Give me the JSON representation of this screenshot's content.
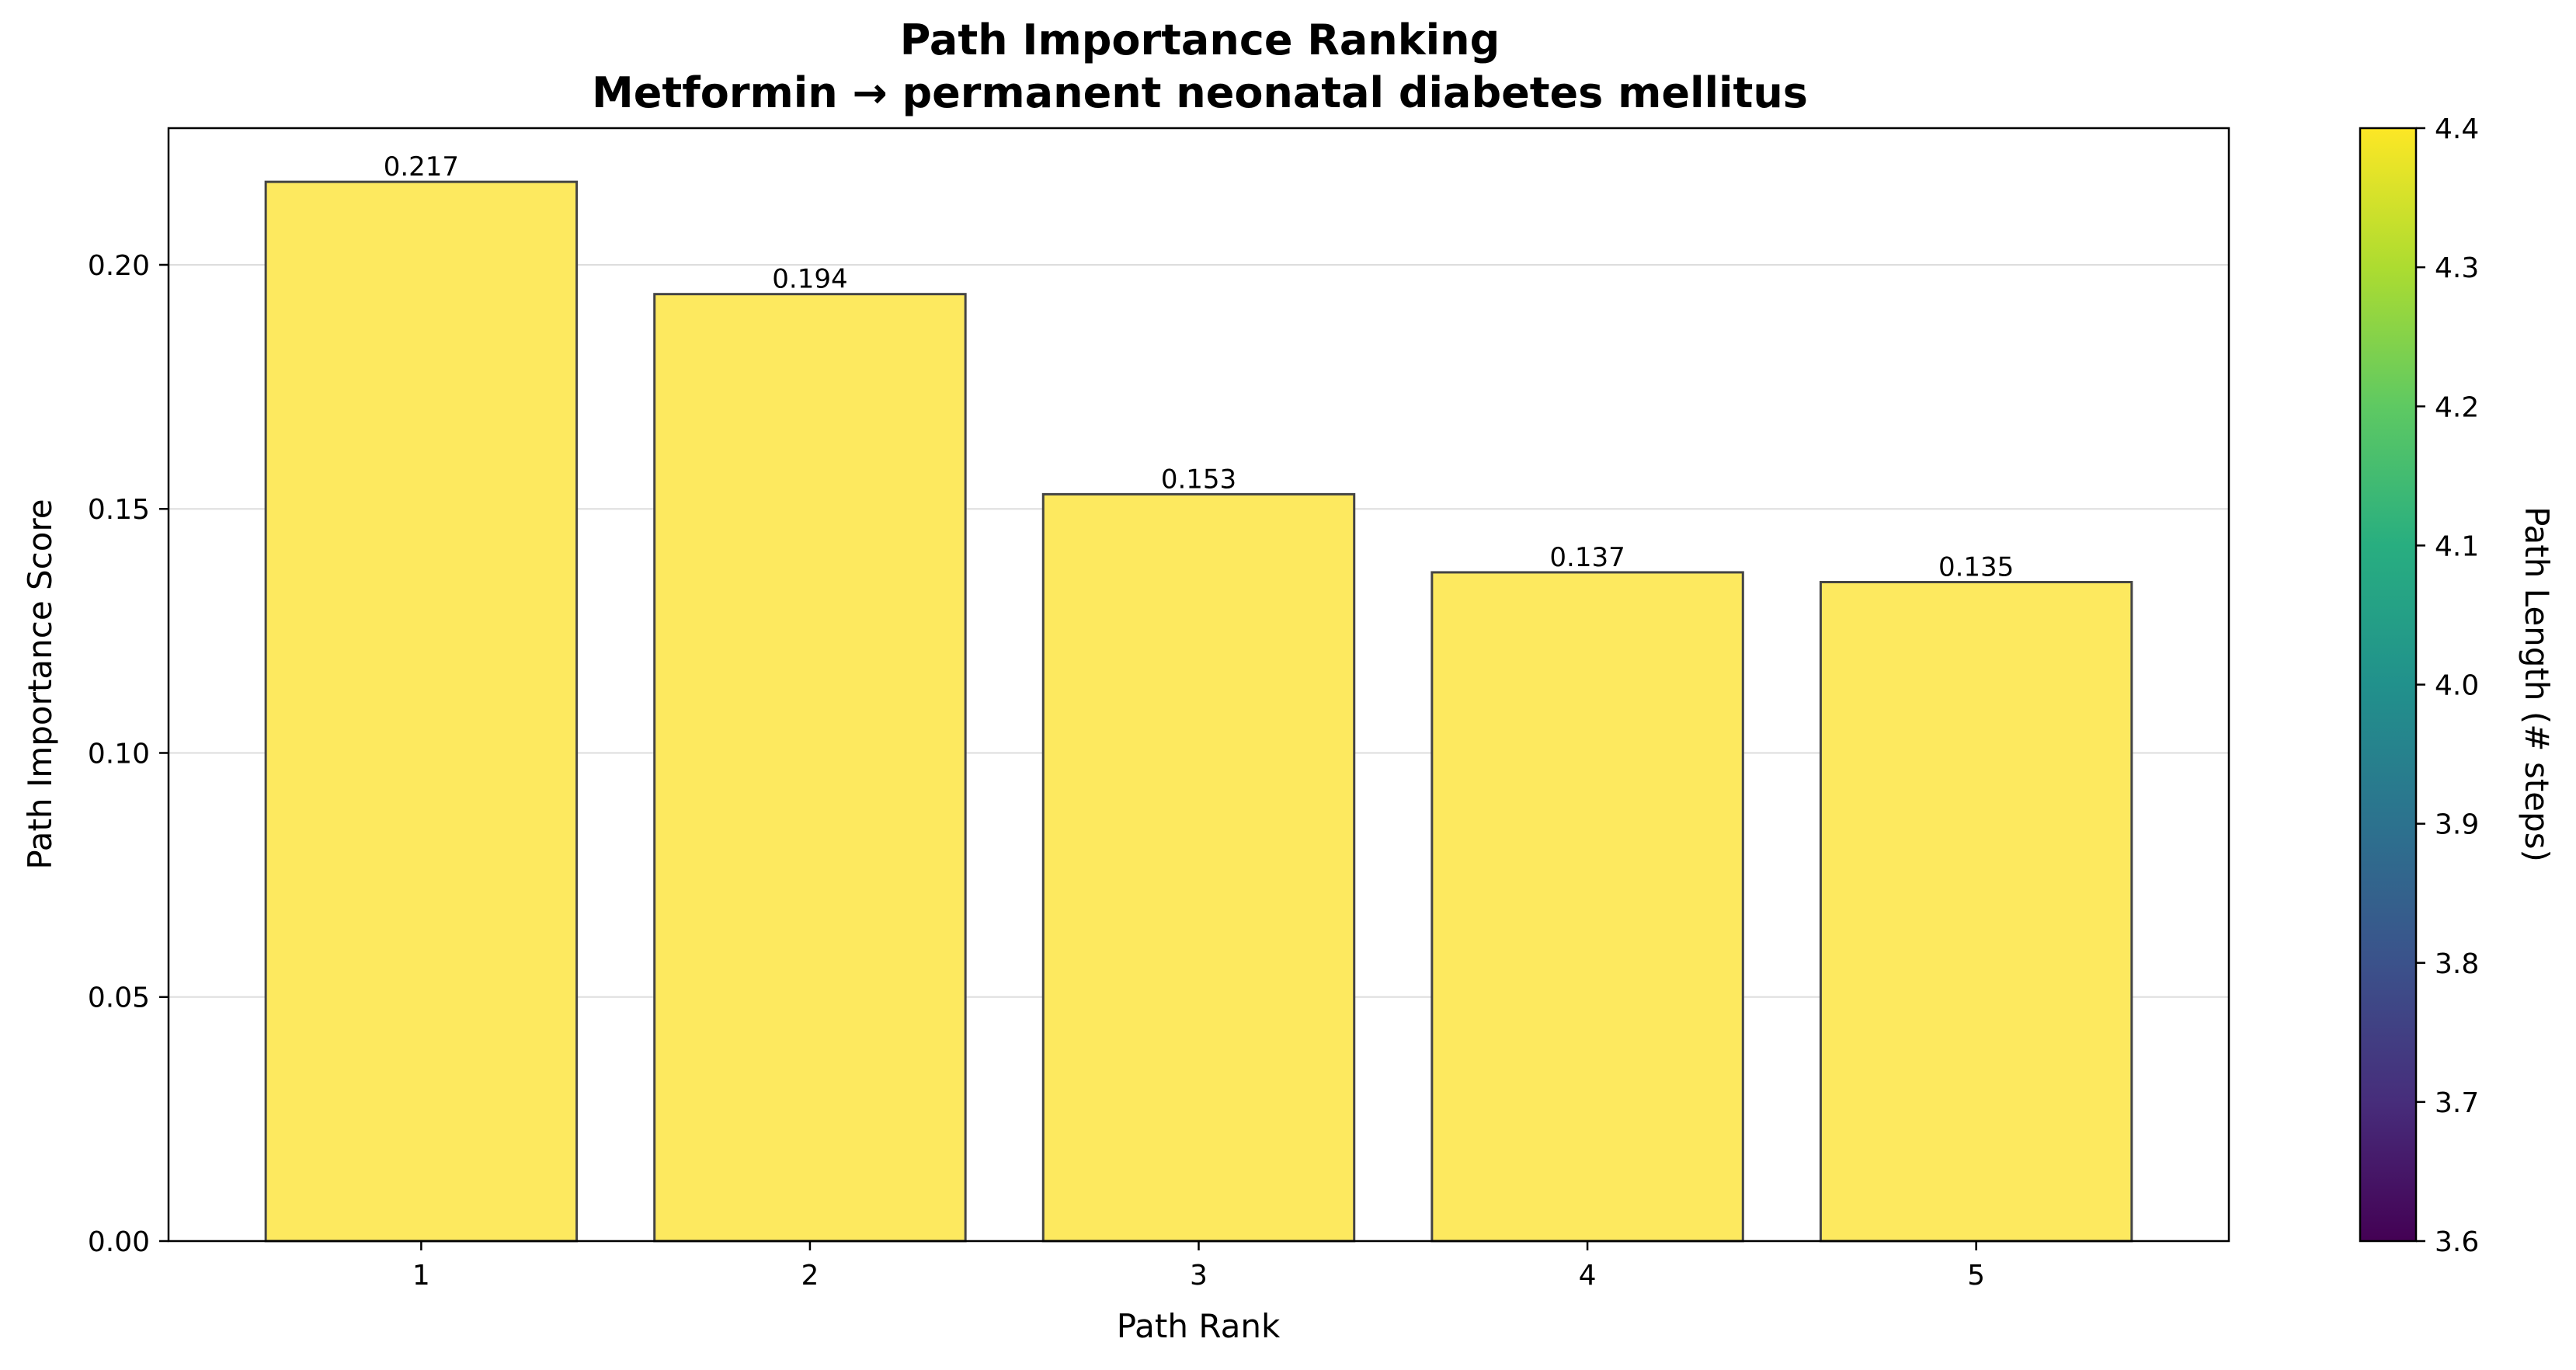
{
  "chart_data": {
    "type": "bar",
    "title": "Path Importance Ranking",
    "subtitle": "Metformin → permanent neonatal diabetes mellitus",
    "xlabel": "Path Rank",
    "ylabel": "Path Importance Score",
    "categories": [
      "1",
      "2",
      "3",
      "4",
      "5"
    ],
    "values": [
      0.217,
      0.194,
      0.153,
      0.137,
      0.135
    ],
    "data_labels": [
      "0.217",
      "0.194",
      "0.153",
      "0.137",
      "0.135"
    ],
    "ylim": [
      0,
      0.228
    ],
    "yticks": [
      0.0,
      0.05,
      0.1,
      0.15,
      0.2
    ],
    "ytick_labels": [
      "0.00",
      "0.05",
      "0.10",
      "0.15",
      "0.20"
    ],
    "grid": "horizontal",
    "bar_color": "#fde95f",
    "bar_edge_color": "#444444",
    "colorbar": {
      "label": "Path Length (# steps)",
      "colormap": "viridis",
      "range": [
        3.6,
        4.4
      ],
      "ticks": [
        3.6,
        3.7,
        3.8,
        3.9,
        4.0,
        4.1,
        4.2,
        4.3,
        4.4
      ],
      "tick_labels": [
        "3.6",
        "3.7",
        "3.8",
        "3.9",
        "4.0",
        "4.1",
        "4.2",
        "4.3",
        "4.4"
      ]
    }
  }
}
